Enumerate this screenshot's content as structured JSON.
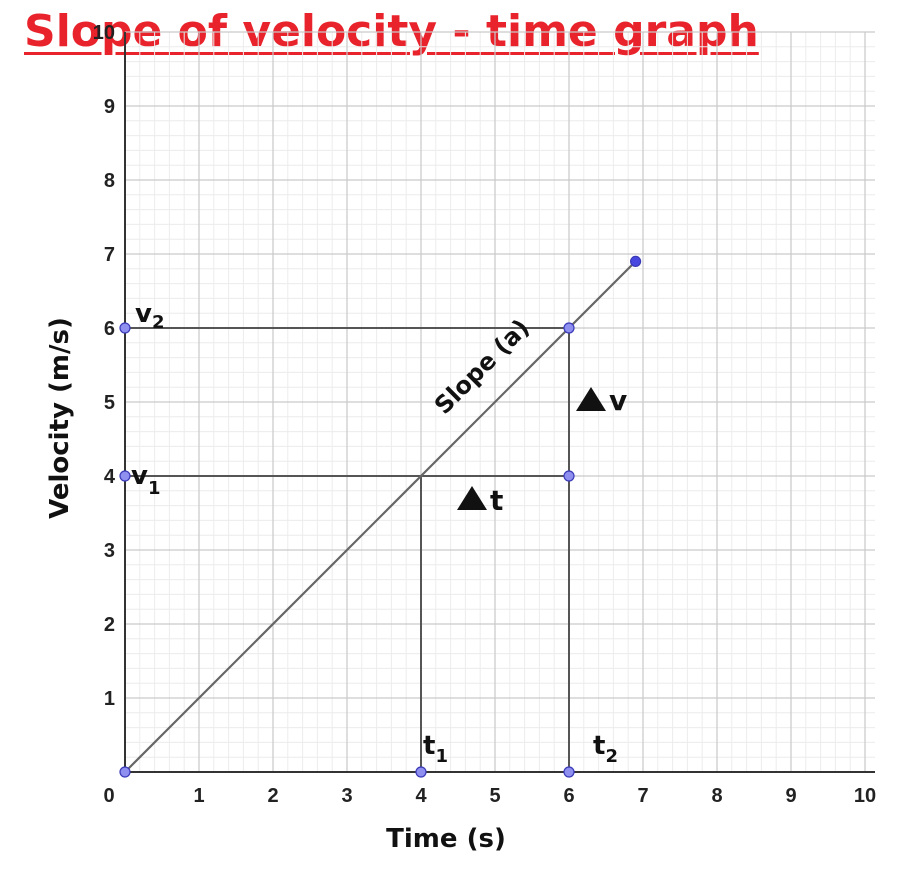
{
  "title": "Slope of velocity - time graph",
  "chart_data": {
    "type": "line",
    "xlabel": "Time (s)",
    "ylabel": "Velocity (m/s)",
    "xlim": [
      0,
      10
    ],
    "ylim": [
      0,
      10
    ],
    "x_ticks": [
      0,
      1,
      2,
      3,
      4,
      5,
      6,
      7,
      8,
      9,
      10
    ],
    "y_ticks": [
      1,
      2,
      3,
      4,
      5,
      6,
      7,
      8,
      9,
      10
    ],
    "grid": true,
    "series": [
      {
        "points": [
          [
            0,
            0
          ],
          [
            6.9,
            6.9
          ]
        ],
        "end_point": [
          6.9,
          6.9
        ]
      }
    ],
    "guides": [
      {
        "from": [
          0,
          6
        ],
        "to": [
          6,
          6
        ]
      },
      {
        "from": [
          0,
          4
        ],
        "to": [
          6,
          4
        ]
      },
      {
        "from": [
          4,
          0
        ],
        "to": [
          4,
          4
        ]
      },
      {
        "from": [
          6,
          0
        ],
        "to": [
          6,
          6
        ]
      }
    ],
    "markers": [
      [
        0,
        0
      ],
      [
        0,
        4
      ],
      [
        0,
        6
      ],
      [
        4,
        0
      ],
      [
        6,
        0
      ],
      [
        6,
        4
      ],
      [
        6,
        6
      ],
      [
        6.9,
        6.9
      ]
    ],
    "annotations": {
      "v2": {
        "base": "v",
        "sub": "2",
        "at": [
          0,
          6
        ]
      },
      "v1": {
        "base": "v",
        "sub": "1",
        "at": [
          0,
          4
        ]
      },
      "t1": {
        "base": "t",
        "sub": "1",
        "at": [
          4,
          0
        ]
      },
      "t2": {
        "base": "t",
        "sub": "2",
        "at": [
          6,
          0
        ]
      },
      "slope": "Slope (a)",
      "delta_v": "v",
      "delta_t": "t"
    }
  }
}
